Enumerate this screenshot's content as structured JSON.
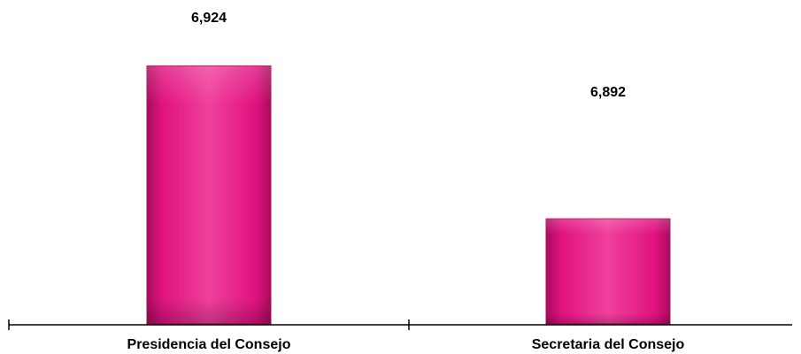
{
  "chart_data": {
    "type": "bar",
    "categories": [
      "Presidencia del Consejo",
      "Secretaria del Consejo"
    ],
    "values": [
      6924,
      6892
    ],
    "value_labels": [
      "6,924",
      "6,892"
    ],
    "title": "",
    "xlabel": "",
    "ylabel": "",
    "ylim": [
      6870,
      6930
    ],
    "grid": false,
    "legend": "none"
  },
  "colors": {
    "bar": "#e0127f",
    "bar_dark": "#a70c5c",
    "bar_light": "#f0409c",
    "axis": "#000000"
  }
}
